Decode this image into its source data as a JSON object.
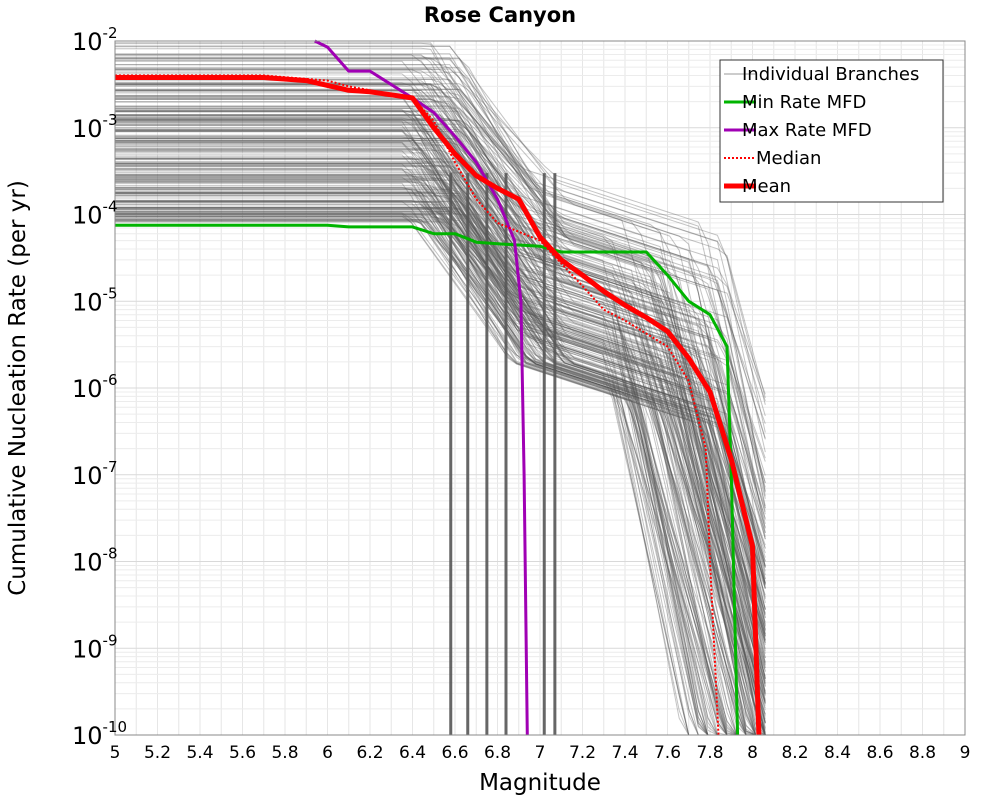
{
  "chart_data": {
    "type": "line",
    "title": "Rose Canyon",
    "xlabel": "Magnitude",
    "ylabel": "Cumulative Nucleation Rate (per yr)",
    "xlim": [
      5,
      9
    ],
    "ylim": [
      1e-10,
      0.01
    ],
    "yscale": "log",
    "grid": true,
    "legend_position": "top-right",
    "x_ticks": [
      "5",
      "5.2",
      "5.4",
      "5.6",
      "5.8",
      "6",
      "6.2",
      "6.4",
      "6.6",
      "6.8",
      "7",
      "7.2",
      "7.4",
      "7.6",
      "7.8",
      "8",
      "8.2",
      "8.4",
      "8.6",
      "8.8",
      "9"
    ],
    "y_ticks": [
      {
        "base": "10",
        "exp": "-2"
      },
      {
        "base": "10",
        "exp": "-3"
      },
      {
        "base": "10",
        "exp": "-4"
      },
      {
        "base": "10",
        "exp": "-5"
      },
      {
        "base": "10",
        "exp": "-6"
      },
      {
        "base": "10",
        "exp": "-7"
      },
      {
        "base": "10",
        "exp": "-8"
      },
      {
        "base": "10",
        "exp": "-9"
      },
      {
        "base": "10",
        "exp": "-10"
      }
    ],
    "series": [
      {
        "name": "Individual Branches",
        "color": "#555555",
        "style": "thin",
        "note_render": "many branch curves between Min and Max Rate MFDs"
      },
      {
        "name": "Min Rate MFD",
        "color": "#00b400",
        "style": "solid",
        "points": [
          [
            5.0,
            7.5e-05
          ],
          [
            5.5,
            7.5e-05
          ],
          [
            6.0,
            7.5e-05
          ],
          [
            6.1,
            7.2e-05
          ],
          [
            6.4,
            7.2e-05
          ],
          [
            6.5,
            6e-05
          ],
          [
            6.6,
            6e-05
          ],
          [
            6.7,
            4.8e-05
          ],
          [
            6.8,
            4.6e-05
          ],
          [
            7.0,
            4.3e-05
          ],
          [
            7.1,
            3.7e-05
          ],
          [
            7.5,
            3.7e-05
          ],
          [
            7.6,
            2e-05
          ],
          [
            7.7,
            1e-05
          ],
          [
            7.8,
            7e-06
          ],
          [
            7.88,
            3e-06
          ],
          [
            7.9,
            1e-07
          ],
          [
            7.93,
            1e-10
          ]
        ]
      },
      {
        "name": "Max Rate MFD",
        "color": "#a000b4",
        "style": "solid",
        "points": [
          [
            5.94,
            0.01
          ],
          [
            6.0,
            0.0085
          ],
          [
            6.1,
            0.0045
          ],
          [
            6.2,
            0.0045
          ],
          [
            6.4,
            0.0022
          ],
          [
            6.5,
            0.0015
          ],
          [
            6.6,
            0.0008
          ],
          [
            6.7,
            0.0004
          ],
          [
            6.8,
            0.00015
          ],
          [
            6.88,
            5e-05
          ],
          [
            6.91,
            1e-05
          ],
          [
            6.925,
            1e-07
          ],
          [
            6.94,
            1e-10
          ]
        ]
      },
      {
        "name": "Median",
        "color": "#ff0000",
        "style": "dotted",
        "points": [
          [
            5.0,
            0.004
          ],
          [
            5.7,
            0.004
          ],
          [
            6.0,
            0.0035
          ],
          [
            6.1,
            0.003
          ],
          [
            6.4,
            0.0022
          ],
          [
            6.5,
            0.0012
          ],
          [
            6.6,
            0.0004
          ],
          [
            6.7,
            0.00015
          ],
          [
            6.8,
            8e-05
          ],
          [
            7.0,
            5e-05
          ],
          [
            7.2,
            1.5e-05
          ],
          [
            7.3,
            8e-06
          ],
          [
            7.4,
            6e-06
          ],
          [
            7.6,
            3e-06
          ],
          [
            7.7,
            1.2e-06
          ],
          [
            7.78,
            2e-07
          ],
          [
            7.8,
            1e-08
          ],
          [
            7.84,
            1e-10
          ]
        ]
      },
      {
        "name": "Mean",
        "color": "#ff0000",
        "style": "thick",
        "points": [
          [
            5.0,
            0.0038
          ],
          [
            5.7,
            0.0038
          ],
          [
            5.9,
            0.0035
          ],
          [
            6.1,
            0.0027
          ],
          [
            6.2,
            0.0026
          ],
          [
            6.3,
            0.0024
          ],
          [
            6.4,
            0.0022
          ],
          [
            6.5,
            0.001
          ],
          [
            6.6,
            0.0005
          ],
          [
            6.7,
            0.00028
          ],
          [
            6.8,
            0.0002
          ],
          [
            6.9,
            0.00015
          ],
          [
            7.0,
            5.5e-05
          ],
          [
            7.1,
            3e-05
          ],
          [
            7.2,
            2e-05
          ],
          [
            7.3,
            1.3e-05
          ],
          [
            7.4,
            9e-06
          ],
          [
            7.5,
            6.5e-06
          ],
          [
            7.6,
            4.5e-06
          ],
          [
            7.7,
            2.2e-06
          ],
          [
            7.8,
            9e-07
          ],
          [
            7.9,
            1.5e-07
          ],
          [
            8.0,
            1.5e-08
          ],
          [
            8.03,
            1e-10
          ]
        ]
      }
    ]
  }
}
